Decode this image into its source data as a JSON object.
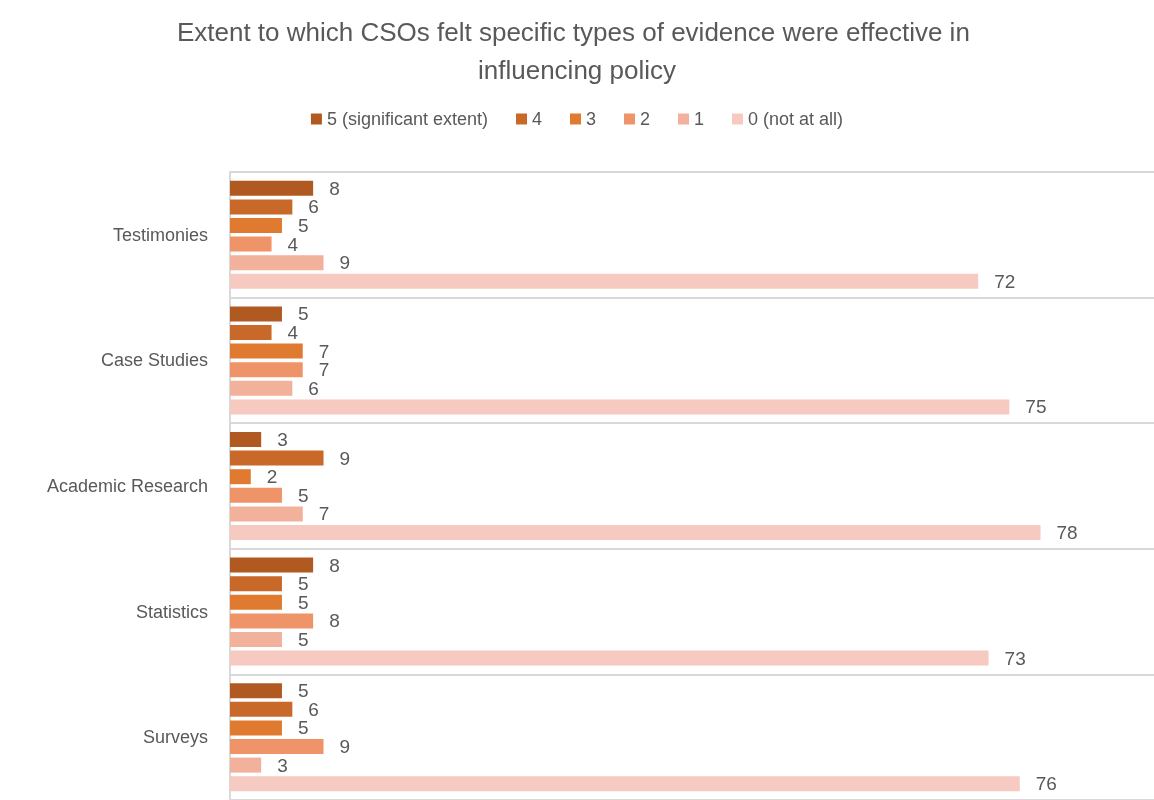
{
  "chart_data": {
    "type": "bar",
    "orientation": "horizontal",
    "title": "Extent to which CSOs felt specific types of evidence were effective in influencing policy",
    "categories": [
      "Testimonies",
      "Case Studies",
      "Academic Research",
      "Statistics",
      "Surveys"
    ],
    "series": [
      {
        "name": "5 (significant extent)",
        "color": "#b05a22",
        "values": [
          8,
          5,
          3,
          8,
          5
        ]
      },
      {
        "name": "4",
        "color": "#c8692a",
        "values": [
          6,
          4,
          9,
          5,
          6
        ]
      },
      {
        "name": "3",
        "color": "#e07a30",
        "values": [
          5,
          7,
          2,
          5,
          5
        ]
      },
      {
        "name": "2",
        "color": "#ef9468",
        "values": [
          4,
          7,
          5,
          8,
          9
        ]
      },
      {
        "name": "1",
        "color": "#f2b19a",
        "values": [
          9,
          6,
          7,
          5,
          3
        ]
      },
      {
        "name": "0 (not at all)",
        "color": "#f6cac0",
        "values": [
          72,
          75,
          78,
          73,
          76
        ]
      }
    ],
    "data_labels": true,
    "grid": "y",
    "legend": "top",
    "tick_labels": "y"
  }
}
